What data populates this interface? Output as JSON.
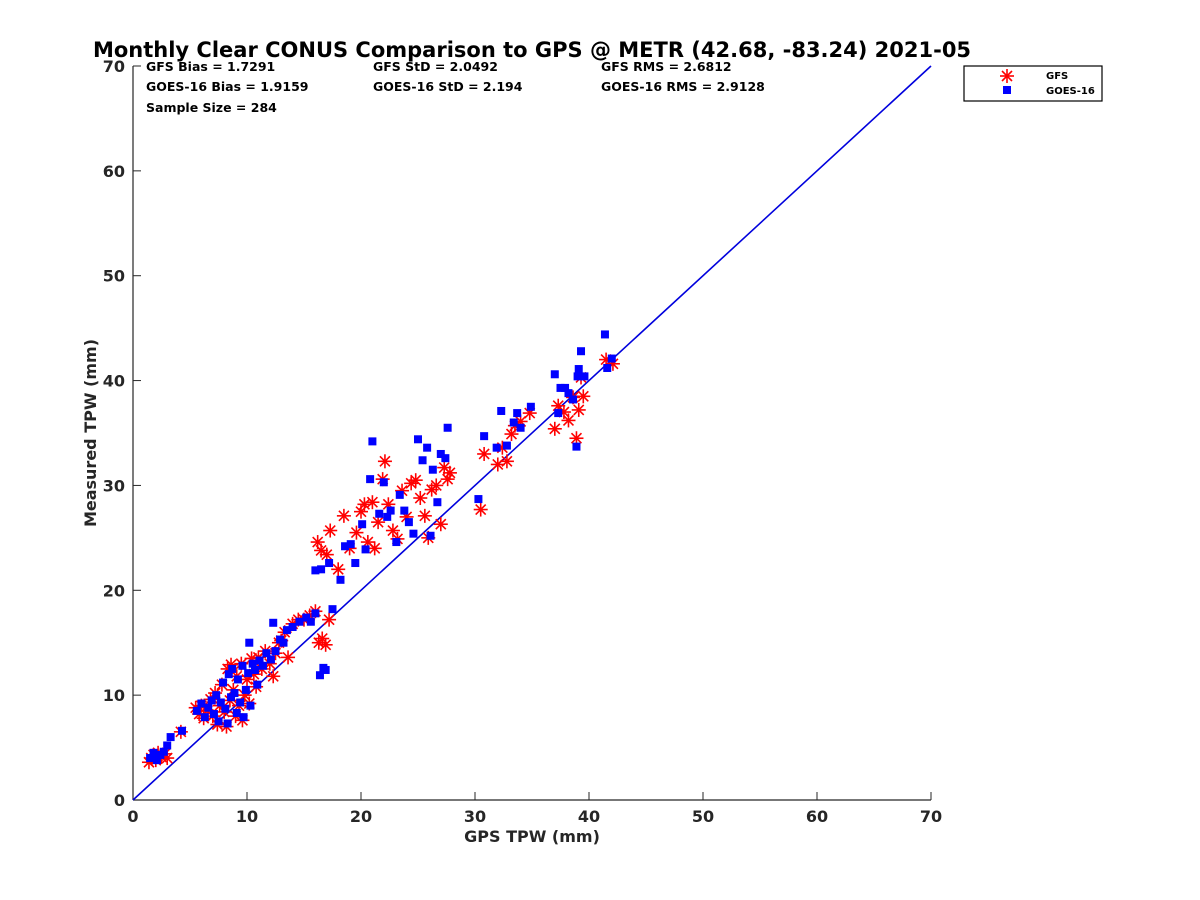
{
  "chart_data": {
    "type": "scatter",
    "title": "Monthly Clear CONUS Comparison to GPS @ METR (42.68, -83.24) 2021-05",
    "xlabel": "GPS TPW (mm)",
    "ylabel": "Measured TPW (mm)",
    "xlim": [
      0,
      70
    ],
    "ylim": [
      0,
      70
    ],
    "xticks": [
      "0",
      "10",
      "20",
      "30",
      "40",
      "50",
      "60",
      "70"
    ],
    "yticks": [
      "0",
      "10",
      "20",
      "30",
      "40",
      "50",
      "60",
      "70"
    ],
    "grid": false,
    "legend_position": "outside-top-right",
    "reference_line": {
      "x": [
        0,
        70
      ],
      "y": [
        0,
        70
      ],
      "color": "#0000dd"
    },
    "stats": [
      [
        "GFS Bias = 1.7291",
        "GFS StD = 2.0492",
        "GFS RMS = 2.6812"
      ],
      [
        "GOES-16 Bias = 1.9159",
        "GOES-16 StD = 2.194",
        "GOES-16 RMS = 2.9128"
      ],
      [
        "Sample Size = 284"
      ]
    ],
    "series": [
      {
        "name": "GFS",
        "marker": "asterisk",
        "color": "#ff0000",
        "points": [
          [
            1.4,
            3.6
          ],
          [
            1.6,
            4.0
          ],
          [
            1.8,
            4.3
          ],
          [
            2.0,
            3.8
          ],
          [
            2.2,
            4.5
          ],
          [
            2.5,
            4.1
          ],
          [
            2.8,
            4.4
          ],
          [
            3.0,
            4.0
          ],
          [
            4.2,
            6.5
          ],
          [
            5.5,
            8.8
          ],
          [
            5.8,
            8.2
          ],
          [
            6.0,
            9.0
          ],
          [
            6.2,
            7.8
          ],
          [
            6.5,
            8.5
          ],
          [
            6.8,
            9.6
          ],
          [
            7.0,
            8.0
          ],
          [
            7.2,
            10.2
          ],
          [
            7.4,
            7.2
          ],
          [
            7.6,
            9.0
          ],
          [
            7.8,
            11.0
          ],
          [
            8.0,
            8.4
          ],
          [
            8.2,
            7.0
          ],
          [
            8.3,
            12.5
          ],
          [
            8.5,
            9.5
          ],
          [
            8.6,
            12.9
          ],
          [
            8.8,
            10.5
          ],
          [
            9.0,
            8.0
          ],
          [
            9.1,
            11.8
          ],
          [
            9.3,
            9.0
          ],
          [
            9.5,
            13.0
          ],
          [
            9.6,
            7.6
          ],
          [
            9.8,
            10.0
          ],
          [
            10.0,
            11.5
          ],
          [
            10.2,
            9.2
          ],
          [
            10.4,
            13.5
          ],
          [
            10.6,
            12.0
          ],
          [
            10.8,
            10.8
          ],
          [
            11.0,
            13.6
          ],
          [
            11.3,
            12.5
          ],
          [
            11.6,
            14.2
          ],
          [
            12.0,
            13.0
          ],
          [
            12.3,
            11.8
          ],
          [
            12.5,
            14.0
          ],
          [
            12.8,
            15.0
          ],
          [
            13.0,
            15.2
          ],
          [
            13.3,
            16.0
          ],
          [
            13.6,
            13.6
          ],
          [
            14.0,
            16.8
          ],
          [
            14.5,
            17.2
          ],
          [
            15.0,
            17.2
          ],
          [
            15.5,
            17.6
          ],
          [
            16.0,
            18.0
          ],
          [
            16.3,
            15.0
          ],
          [
            16.6,
            15.4
          ],
          [
            16.9,
            14.8
          ],
          [
            17.2,
            17.2
          ],
          [
            16.2,
            24.6
          ],
          [
            16.5,
            23.8
          ],
          [
            17.0,
            23.4
          ],
          [
            17.3,
            25.7
          ],
          [
            18.0,
            22.0
          ],
          [
            18.5,
            27.1
          ],
          [
            19.0,
            24.0
          ],
          [
            19.6,
            25.5
          ],
          [
            20.0,
            27.5
          ],
          [
            20.3,
            28.2
          ],
          [
            20.6,
            24.6
          ],
          [
            21.0,
            28.4
          ],
          [
            21.2,
            24.0
          ],
          [
            21.5,
            26.5
          ],
          [
            21.9,
            30.6
          ],
          [
            22.1,
            32.3
          ],
          [
            22.4,
            28.2
          ],
          [
            22.8,
            25.7
          ],
          [
            23.2,
            24.9
          ],
          [
            23.6,
            29.5
          ],
          [
            24.0,
            27.0
          ],
          [
            24.4,
            30.2
          ],
          [
            24.8,
            30.5
          ],
          [
            25.2,
            28.8
          ],
          [
            25.6,
            27.1
          ],
          [
            25.9,
            25.0
          ],
          [
            26.2,
            29.6
          ],
          [
            26.6,
            30.0
          ],
          [
            27.0,
            26.3
          ],
          [
            27.3,
            31.7
          ],
          [
            27.6,
            30.6
          ],
          [
            27.8,
            31.2
          ],
          [
            30.5,
            27.7
          ],
          [
            30.8,
            33.0
          ],
          [
            32.0,
            32.0
          ],
          [
            32.4,
            33.6
          ],
          [
            32.8,
            32.3
          ],
          [
            33.2,
            34.9
          ],
          [
            33.5,
            35.7
          ],
          [
            34.0,
            36.1
          ],
          [
            34.8,
            36.9
          ],
          [
            37.0,
            35.4
          ],
          [
            37.3,
            37.6
          ],
          [
            37.8,
            37.0
          ],
          [
            38.2,
            36.2
          ],
          [
            38.6,
            38.4
          ],
          [
            38.9,
            34.5
          ],
          [
            39.1,
            37.2
          ],
          [
            39.3,
            40.3
          ],
          [
            39.5,
            38.5
          ],
          [
            41.5,
            42.0
          ],
          [
            42.1,
            41.6
          ]
        ]
      },
      {
        "name": "GOES-16",
        "marker": "square",
        "color": "#0000ff",
        "points": [
          [
            1.5,
            4.0
          ],
          [
            1.8,
            4.5
          ],
          [
            2.1,
            3.8
          ],
          [
            2.4,
            4.3
          ],
          [
            2.7,
            4.6
          ],
          [
            3.0,
            5.2
          ],
          [
            3.3,
            6.0
          ],
          [
            4.3,
            6.6
          ],
          [
            5.6,
            8.5
          ],
          [
            6.0,
            9.2
          ],
          [
            6.3,
            7.9
          ],
          [
            6.6,
            8.8
          ],
          [
            6.9,
            9.5
          ],
          [
            7.1,
            8.2
          ],
          [
            7.3,
            10.0
          ],
          [
            7.5,
            7.5
          ],
          [
            7.7,
            9.3
          ],
          [
            7.9,
            11.2
          ],
          [
            8.1,
            8.7
          ],
          [
            8.3,
            7.3
          ],
          [
            8.4,
            12.0
          ],
          [
            8.6,
            9.8
          ],
          [
            8.7,
            12.5
          ],
          [
            8.9,
            10.2
          ],
          [
            9.1,
            8.3
          ],
          [
            9.2,
            11.5
          ],
          [
            9.4,
            9.3
          ],
          [
            9.6,
            12.8
          ],
          [
            9.7,
            7.9
          ],
          [
            9.9,
            10.5
          ],
          [
            10.1,
            12.1
          ],
          [
            10.2,
            15.0
          ],
          [
            10.3,
            9.0
          ],
          [
            10.5,
            13.0
          ],
          [
            10.7,
            12.4
          ],
          [
            10.9,
            11.0
          ],
          [
            11.1,
            13.3
          ],
          [
            11.4,
            12.8
          ],
          [
            11.7,
            14.0
          ],
          [
            12.1,
            13.4
          ],
          [
            12.3,
            16.9
          ],
          [
            12.5,
            14.2
          ],
          [
            12.9,
            15.3
          ],
          [
            13.2,
            15.0
          ],
          [
            13.5,
            16.2
          ],
          [
            14.0,
            16.5
          ],
          [
            14.6,
            17.0
          ],
          [
            15.2,
            17.4
          ],
          [
            15.6,
            17.0
          ],
          [
            16.0,
            17.8
          ],
          [
            16.4,
            11.9
          ],
          [
            16.7,
            12.6
          ],
          [
            16.9,
            12.4
          ],
          [
            17.5,
            18.2
          ],
          [
            16.0,
            21.9
          ],
          [
            16.5,
            22.0
          ],
          [
            17.2,
            22.6
          ],
          [
            18.2,
            21.0
          ],
          [
            18.6,
            24.2
          ],
          [
            19.1,
            24.4
          ],
          [
            19.5,
            22.6
          ],
          [
            20.1,
            26.3
          ],
          [
            20.4,
            23.9
          ],
          [
            20.8,
            30.6
          ],
          [
            21.0,
            34.2
          ],
          [
            21.6,
            27.3
          ],
          [
            22.0,
            30.3
          ],
          [
            22.3,
            27.0
          ],
          [
            22.6,
            27.6
          ],
          [
            23.1,
            24.6
          ],
          [
            23.4,
            29.1
          ],
          [
            23.8,
            27.6
          ],
          [
            24.2,
            26.5
          ],
          [
            24.6,
            25.4
          ],
          [
            25.0,
            34.4
          ],
          [
            25.4,
            32.4
          ],
          [
            25.8,
            33.6
          ],
          [
            26.1,
            25.2
          ],
          [
            26.3,
            31.5
          ],
          [
            26.7,
            28.4
          ],
          [
            27.0,
            33.0
          ],
          [
            27.4,
            32.6
          ],
          [
            27.6,
            35.5
          ],
          [
            30.3,
            28.7
          ],
          [
            30.8,
            34.7
          ],
          [
            31.9,
            33.6
          ],
          [
            32.3,
            37.1
          ],
          [
            32.8,
            33.8
          ],
          [
            33.4,
            36.0
          ],
          [
            33.7,
            36.9
          ],
          [
            34.0,
            35.5
          ],
          [
            34.9,
            37.5
          ],
          [
            37.0,
            40.6
          ],
          [
            37.3,
            36.9
          ],
          [
            37.5,
            39.3
          ],
          [
            37.9,
            39.3
          ],
          [
            38.2,
            38.8
          ],
          [
            38.6,
            38.2
          ],
          [
            38.9,
            33.7
          ],
          [
            39.0,
            40.4
          ],
          [
            39.1,
            41.1
          ],
          [
            39.3,
            42.8
          ],
          [
            39.6,
            40.4
          ],
          [
            41.4,
            44.4
          ],
          [
            41.6,
            41.2
          ],
          [
            42.0,
            42.1
          ]
        ]
      }
    ]
  }
}
